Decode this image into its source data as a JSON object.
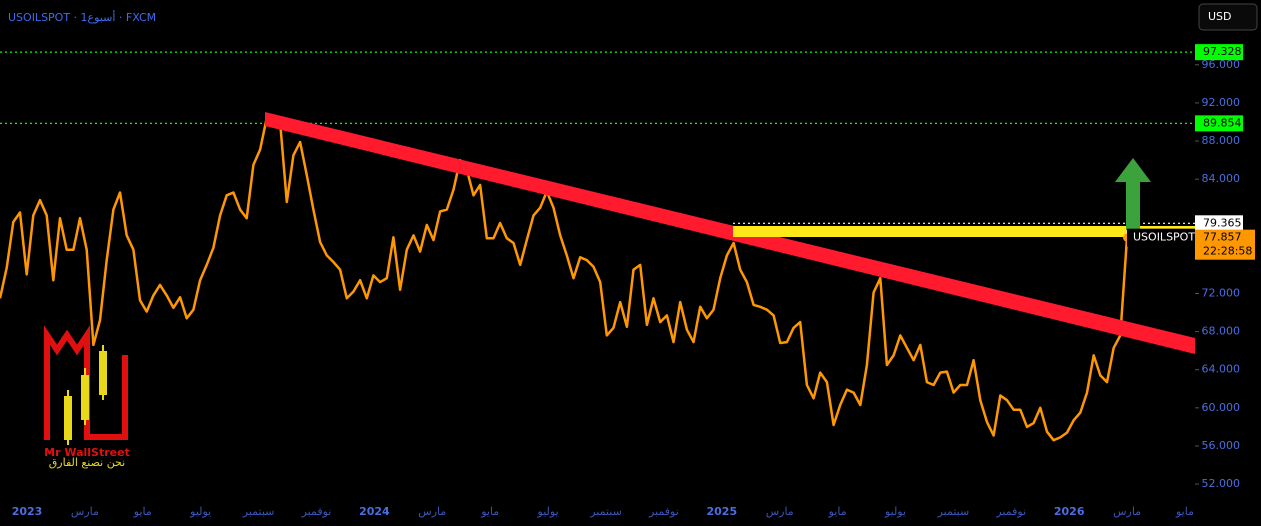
{
  "chart_data": {
    "type": "line",
    "title": "USOILSPOT · 1أسبوع · FXCM",
    "currency": "USD",
    "series": [
      {
        "name": "USOILSPOT",
        "color": "#ff9800",
        "values": [
          71.5,
          74.7,
          79.5,
          80.5,
          74,
          80.2,
          81.8,
          80.2,
          73.4,
          79.9,
          76.6,
          76.6,
          79.9,
          76.6,
          66.6,
          69.2,
          75.5,
          80.8,
          82.6,
          78.1,
          76.6,
          71.3,
          70.1,
          71.8,
          72.9,
          71.8,
          70.5,
          71.6,
          69.4,
          70.3,
          73.4,
          75,
          76.8,
          80.2,
          82.3,
          82.6,
          80.8,
          79.9,
          85.5,
          87.1,
          90.4,
          89.9,
          90,
          81.6,
          86.5,
          87.9,
          84.4,
          80.8,
          77.4,
          76,
          75.3,
          74.5,
          71.5,
          72.2,
          73.4,
          71.5,
          73.9,
          73.2,
          73.6,
          77.9,
          72.4,
          76.6,
          78.1,
          76.4,
          79.2,
          77.6,
          80.6,
          80.8,
          82.9,
          86,
          85,
          82.3,
          83.4,
          77.8,
          77.8,
          79.4,
          77.8,
          77.3,
          75,
          77.6,
          80.2,
          81,
          82.7,
          81,
          78.1,
          76,
          73.6,
          75.8,
          75.5,
          74.8,
          73.2,
          67.6,
          68.4,
          71.1,
          68.5,
          74.5,
          75,
          68.7,
          71.5,
          69,
          69.7,
          66.9,
          71.1,
          68.2,
          66.9,
          70.6,
          69.4,
          70.3,
          73.6,
          76,
          77.3,
          74.5,
          73.2,
          70.8,
          70.6,
          70.3,
          69.7,
          66.8,
          66.9,
          68.4,
          69,
          62.4,
          61,
          63.7,
          62.7,
          58.2,
          60.3,
          61.9,
          61.6,
          60.3,
          64.5,
          72.1,
          73.6,
          64.5,
          65.5,
          67.6,
          66.3,
          65,
          66.6,
          62.7,
          62.4,
          63.7,
          63.8,
          61.6,
          62.4,
          62.4,
          65,
          60.8,
          58.5,
          57.1,
          61.3,
          60.8,
          59.8,
          59.8,
          58,
          58.4,
          60,
          57.5,
          56.6,
          56.9,
          57.4,
          58.7,
          59.5,
          61.6,
          65.5,
          63.4,
          62.7,
          66.3,
          67.6,
          77.857
        ]
      }
    ],
    "last_time": "22:28:58",
    "price_lines": [
      {
        "value": 97.328,
        "color": "#00ff00"
      },
      {
        "value": 89.854,
        "color": "#00ff00"
      },
      {
        "value": 79.365,
        "color": "#ffffff"
      }
    ],
    "ylim": [
      47.6,
      102.8
    ],
    "yticks": [
      {
        "value": 52,
        "label": "52.000"
      },
      {
        "value": 56,
        "label": "56.000"
      },
      {
        "value": 60,
        "label": "60.000"
      },
      {
        "value": 64,
        "label": "64.000"
      },
      {
        "value": 68,
        "label": "68.000"
      },
      {
        "value": 72,
        "label": "72.000"
      },
      {
        "value": 84,
        "label": "84.000"
      },
      {
        "value": 88,
        "label": "88.000"
      },
      {
        "value": 92,
        "label": "92.000"
      },
      {
        "value": 96,
        "label": "96.000"
      }
    ],
    "xticks": [
      "2023",
      "مارس",
      "مايو",
      "يوليو",
      "سبتمبر",
      "نوفمبر",
      "2024",
      "مارس",
      "مايو",
      "يوليو",
      "سبتمبر",
      "نوفمبر",
      "2025",
      "مارس",
      "مايو",
      "يوليو",
      "سبتمبر",
      "نوفمبر",
      "2026",
      "مارس",
      "مايو"
    ],
    "logo": {
      "name": "Mr WallStreet",
      "tagline": "نحن نصنع الفارق"
    }
  }
}
